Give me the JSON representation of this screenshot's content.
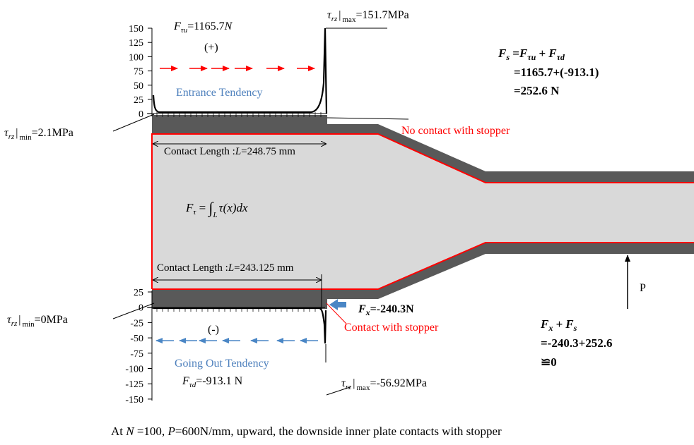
{
  "colors": {
    "plate_fill": "#d9d9d9",
    "outer_fill": "#595959",
    "contact_outline": "#ff0000",
    "arrow_red": "#ff0000",
    "arrow_blue": "#4a86c5",
    "tendency_text": "#4f81bd",
    "stopper_text": "#ff0000"
  },
  "top_chart": {
    "y_ticks": [
      "150",
      "125",
      "100",
      "75",
      "50",
      "25",
      "0"
    ],
    "force": {
      "sym": "F",
      "sub": "τu",
      "rest": "=1165.7",
      "unit": "N"
    },
    "sign": "(+)",
    "tendency": "Entrance Tendency",
    "max_label": {
      "sym": "τ",
      "sub": "rz",
      "bar": "|",
      "subsub": "max",
      "rest": "=151.7MPa"
    },
    "min_label": {
      "sym": "τ",
      "sub": "rz",
      "bar": "|",
      "subsub": "min",
      "rest": "=2.1MPa"
    }
  },
  "bottom_chart": {
    "y_ticks": [
      "25",
      "0",
      "-25",
      "-50",
      "-75",
      "-100",
      "-125",
      "-150"
    ],
    "force": {
      "sym": "F",
      "sub": "τd",
      "rest": "=-913.1 N"
    },
    "sign": "(-)",
    "tendency": "Going Out Tendency",
    "max_label": {
      "sym": "τ",
      "sub": "rz",
      "bar": "|",
      "subsub": "max",
      "rest": "=-56.92MPa"
    },
    "min_label": {
      "sym": "τ",
      "sub": "rz",
      "bar": "|",
      "subsub": "min",
      "rest": "=0MPa"
    }
  },
  "contact_top": {
    "prefix": "Contact Length :",
    "sym": "L",
    "rest": "=248.75  mm"
  },
  "contact_bottom": {
    "prefix": "Contact Length :",
    "sym": "L",
    "rest": "=243.125  mm"
  },
  "integral": {
    "lhs": "F",
    "lhs_sub": "τ",
    "eq": " = ",
    "int": "∫",
    "int_sub": "L",
    "body": "τ(x)dx"
  },
  "no_contact": "No contact with stopper",
  "contact": "Contact with stopper",
  "fx_label": {
    "sym": "F",
    "sub": "x",
    "rest": "=-240.3N"
  },
  "p_label": "P",
  "fs_block": {
    "line1": {
      "a": "F",
      "a_sub": "s",
      "mid": " =",
      "b": "F",
      "b_sub": "τu",
      "plus": " +",
      "c": "F",
      "c_sub": "τd"
    },
    "line2": "=1165.7+(-913.1)",
    "line3": "=252.6 N"
  },
  "sum_block": {
    "line1": {
      "a": "F",
      "a_sub": "x",
      "plus": " +",
      "b": "F",
      "b_sub": "s"
    },
    "line2": "=-240.3+252.6",
    "line3": "≌0"
  },
  "caption": {
    "pre": "At ",
    "N": "N",
    "mid1": " =100, ",
    "P": "P",
    "mid2": "=600N/mm, upward, the downside inner plate contacts with stopper"
  }
}
